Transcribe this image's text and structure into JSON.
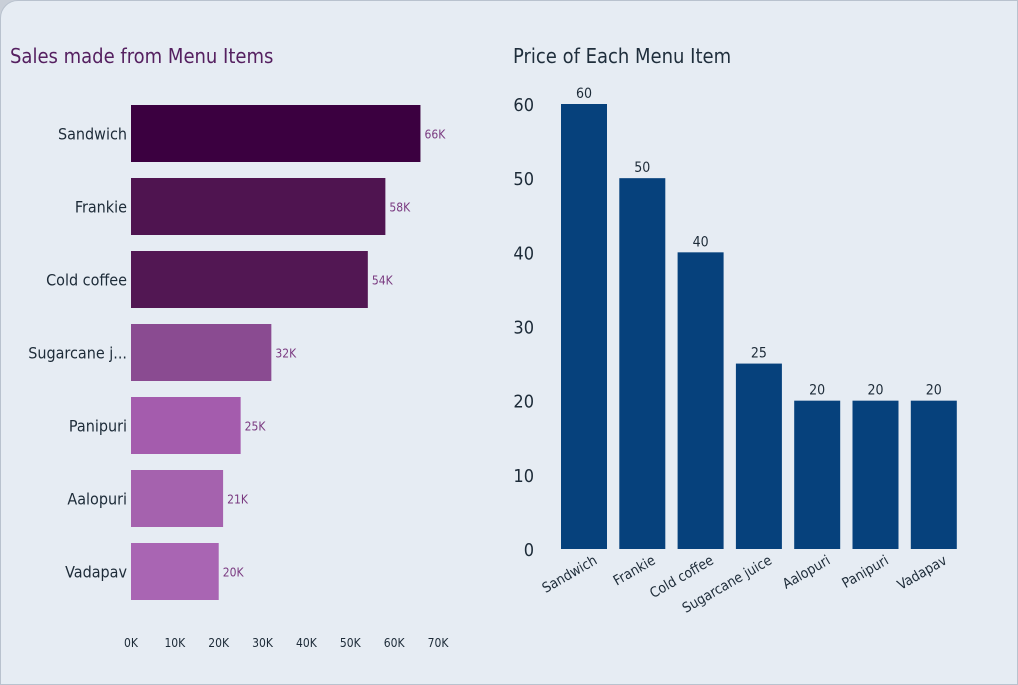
{
  "chart_data": [
    {
      "type": "bar",
      "orientation": "horizontal",
      "title": "Sales made from Menu Items",
      "categories": [
        "Sandwich",
        "Frankie",
        "Cold coffee",
        "Sugarcane j...",
        "Panipuri",
        "Aalopuri",
        "Vadapav"
      ],
      "values": [
        66000,
        58000,
        54000,
        32000,
        25000,
        21000,
        20000
      ],
      "data_labels": [
        "66K",
        "58K",
        "54K",
        "32K",
        "25K",
        "21K",
        "20K"
      ],
      "xticks": [
        "0K",
        "10K",
        "20K",
        "30K",
        "40K",
        "50K",
        "60K",
        "70K"
      ],
      "xlim": [
        0,
        70000
      ],
      "colors": [
        "#3b0040",
        "#4f1450",
        "#521753",
        "#8a4b91",
        "#a45cad",
        "#a562ae",
        "#a965b3"
      ],
      "label_color": "#7a3a80",
      "xlabel": "",
      "ylabel": "",
      "grid": false
    },
    {
      "type": "bar",
      "orientation": "vertical",
      "title": "Price of Each Menu Item",
      "categories": [
        "Sandwich",
        "Frankie",
        "Cold coffee",
        "Sugarcane juice",
        "Aalopuri",
        "Panipuri",
        "Vadapav"
      ],
      "values": [
        60,
        50,
        40,
        25,
        20,
        20,
        20
      ],
      "yticks": [
        0,
        10,
        20,
        30,
        40,
        50,
        60
      ],
      "ylim": [
        0,
        60
      ],
      "color": "#06417c",
      "xlabel": "",
      "ylabel": "",
      "grid": false
    }
  ],
  "colors": {
    "title_left": "#552060",
    "title_right": "#1f2e3c",
    "axis_text": "#1d2b38"
  }
}
